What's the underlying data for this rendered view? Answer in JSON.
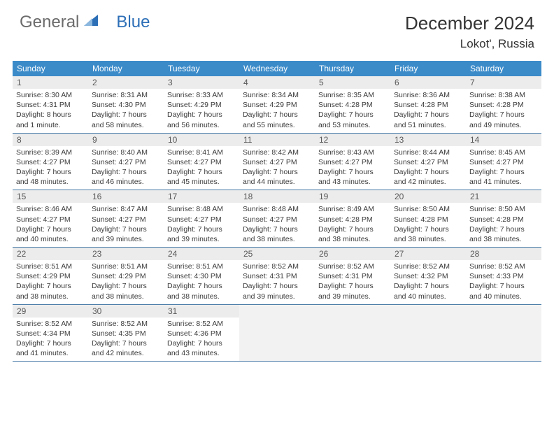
{
  "brand": {
    "part1": "General",
    "part2": "Blue"
  },
  "title": "December 2024",
  "location": "Lokot', Russia",
  "colors": {
    "header_bar": "#3b8bc9",
    "daynum_bg": "#ececec",
    "text": "#3b3b3b",
    "brand_gray": "#6b6b6b",
    "brand_blue": "#2d6fb7",
    "week_border": "#4a7da8",
    "empty_bg": "#f2f2f2",
    "background": "#ffffff"
  },
  "typography": {
    "title_fontsize": 26,
    "location_fontsize": 17,
    "dow_fontsize": 12,
    "daynum_fontsize": 12,
    "body_fontsize": 10.5
  },
  "days_of_week": [
    "Sunday",
    "Monday",
    "Tuesday",
    "Wednesday",
    "Thursday",
    "Friday",
    "Saturday"
  ],
  "weeks": [
    [
      {
        "n": "1",
        "sunrise": "Sunrise: 8:30 AM",
        "sunset": "Sunset: 4:31 PM",
        "day1": "Daylight: 8 hours",
        "day2": "and 1 minute."
      },
      {
        "n": "2",
        "sunrise": "Sunrise: 8:31 AM",
        "sunset": "Sunset: 4:30 PM",
        "day1": "Daylight: 7 hours",
        "day2": "and 58 minutes."
      },
      {
        "n": "3",
        "sunrise": "Sunrise: 8:33 AM",
        "sunset": "Sunset: 4:29 PM",
        "day1": "Daylight: 7 hours",
        "day2": "and 56 minutes."
      },
      {
        "n": "4",
        "sunrise": "Sunrise: 8:34 AM",
        "sunset": "Sunset: 4:29 PM",
        "day1": "Daylight: 7 hours",
        "day2": "and 55 minutes."
      },
      {
        "n": "5",
        "sunrise": "Sunrise: 8:35 AM",
        "sunset": "Sunset: 4:28 PM",
        "day1": "Daylight: 7 hours",
        "day2": "and 53 minutes."
      },
      {
        "n": "6",
        "sunrise": "Sunrise: 8:36 AM",
        "sunset": "Sunset: 4:28 PM",
        "day1": "Daylight: 7 hours",
        "day2": "and 51 minutes."
      },
      {
        "n": "7",
        "sunrise": "Sunrise: 8:38 AM",
        "sunset": "Sunset: 4:28 PM",
        "day1": "Daylight: 7 hours",
        "day2": "and 49 minutes."
      }
    ],
    [
      {
        "n": "8",
        "sunrise": "Sunrise: 8:39 AM",
        "sunset": "Sunset: 4:27 PM",
        "day1": "Daylight: 7 hours",
        "day2": "and 48 minutes."
      },
      {
        "n": "9",
        "sunrise": "Sunrise: 8:40 AM",
        "sunset": "Sunset: 4:27 PM",
        "day1": "Daylight: 7 hours",
        "day2": "and 46 minutes."
      },
      {
        "n": "10",
        "sunrise": "Sunrise: 8:41 AM",
        "sunset": "Sunset: 4:27 PM",
        "day1": "Daylight: 7 hours",
        "day2": "and 45 minutes."
      },
      {
        "n": "11",
        "sunrise": "Sunrise: 8:42 AM",
        "sunset": "Sunset: 4:27 PM",
        "day1": "Daylight: 7 hours",
        "day2": "and 44 minutes."
      },
      {
        "n": "12",
        "sunrise": "Sunrise: 8:43 AM",
        "sunset": "Sunset: 4:27 PM",
        "day1": "Daylight: 7 hours",
        "day2": "and 43 minutes."
      },
      {
        "n": "13",
        "sunrise": "Sunrise: 8:44 AM",
        "sunset": "Sunset: 4:27 PM",
        "day1": "Daylight: 7 hours",
        "day2": "and 42 minutes."
      },
      {
        "n": "14",
        "sunrise": "Sunrise: 8:45 AM",
        "sunset": "Sunset: 4:27 PM",
        "day1": "Daylight: 7 hours",
        "day2": "and 41 minutes."
      }
    ],
    [
      {
        "n": "15",
        "sunrise": "Sunrise: 8:46 AM",
        "sunset": "Sunset: 4:27 PM",
        "day1": "Daylight: 7 hours",
        "day2": "and 40 minutes."
      },
      {
        "n": "16",
        "sunrise": "Sunrise: 8:47 AM",
        "sunset": "Sunset: 4:27 PM",
        "day1": "Daylight: 7 hours",
        "day2": "and 39 minutes."
      },
      {
        "n": "17",
        "sunrise": "Sunrise: 8:48 AM",
        "sunset": "Sunset: 4:27 PM",
        "day1": "Daylight: 7 hours",
        "day2": "and 39 minutes."
      },
      {
        "n": "18",
        "sunrise": "Sunrise: 8:48 AM",
        "sunset": "Sunset: 4:27 PM",
        "day1": "Daylight: 7 hours",
        "day2": "and 38 minutes."
      },
      {
        "n": "19",
        "sunrise": "Sunrise: 8:49 AM",
        "sunset": "Sunset: 4:28 PM",
        "day1": "Daylight: 7 hours",
        "day2": "and 38 minutes."
      },
      {
        "n": "20",
        "sunrise": "Sunrise: 8:50 AM",
        "sunset": "Sunset: 4:28 PM",
        "day1": "Daylight: 7 hours",
        "day2": "and 38 minutes."
      },
      {
        "n": "21",
        "sunrise": "Sunrise: 8:50 AM",
        "sunset": "Sunset: 4:28 PM",
        "day1": "Daylight: 7 hours",
        "day2": "and 38 minutes."
      }
    ],
    [
      {
        "n": "22",
        "sunrise": "Sunrise: 8:51 AM",
        "sunset": "Sunset: 4:29 PM",
        "day1": "Daylight: 7 hours",
        "day2": "and 38 minutes."
      },
      {
        "n": "23",
        "sunrise": "Sunrise: 8:51 AM",
        "sunset": "Sunset: 4:29 PM",
        "day1": "Daylight: 7 hours",
        "day2": "and 38 minutes."
      },
      {
        "n": "24",
        "sunrise": "Sunrise: 8:51 AM",
        "sunset": "Sunset: 4:30 PM",
        "day1": "Daylight: 7 hours",
        "day2": "and 38 minutes."
      },
      {
        "n": "25",
        "sunrise": "Sunrise: 8:52 AM",
        "sunset": "Sunset: 4:31 PM",
        "day1": "Daylight: 7 hours",
        "day2": "and 39 minutes."
      },
      {
        "n": "26",
        "sunrise": "Sunrise: 8:52 AM",
        "sunset": "Sunset: 4:31 PM",
        "day1": "Daylight: 7 hours",
        "day2": "and 39 minutes."
      },
      {
        "n": "27",
        "sunrise": "Sunrise: 8:52 AM",
        "sunset": "Sunset: 4:32 PM",
        "day1": "Daylight: 7 hours",
        "day2": "and 40 minutes."
      },
      {
        "n": "28",
        "sunrise": "Sunrise: 8:52 AM",
        "sunset": "Sunset: 4:33 PM",
        "day1": "Daylight: 7 hours",
        "day2": "and 40 minutes."
      }
    ],
    [
      {
        "n": "29",
        "sunrise": "Sunrise: 8:52 AM",
        "sunset": "Sunset: 4:34 PM",
        "day1": "Daylight: 7 hours",
        "day2": "and 41 minutes."
      },
      {
        "n": "30",
        "sunrise": "Sunrise: 8:52 AM",
        "sunset": "Sunset: 4:35 PM",
        "day1": "Daylight: 7 hours",
        "day2": "and 42 minutes."
      },
      {
        "n": "31",
        "sunrise": "Sunrise: 8:52 AM",
        "sunset": "Sunset: 4:36 PM",
        "day1": "Daylight: 7 hours",
        "day2": "and 43 minutes."
      },
      null,
      null,
      null,
      null
    ]
  ]
}
